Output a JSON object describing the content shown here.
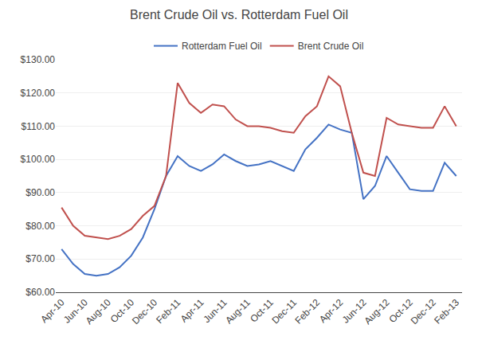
{
  "chart_data": {
    "type": "line",
    "title": "Brent Crude Oil vs. Rotterdam Fuel Oil",
    "categories": [
      "Apr-10",
      null,
      "Jun-10",
      null,
      "Aug-10",
      null,
      "Oct-10",
      null,
      "Dec-10",
      null,
      "Feb-11",
      null,
      "Apr-11",
      null,
      "Jun-11",
      null,
      "Aug-11",
      null,
      "Oct-11",
      null,
      "Dec-11",
      null,
      "Feb-12",
      null,
      "Apr-12",
      null,
      "Jun-12",
      null,
      "Aug-12",
      null,
      "Oct-12",
      null,
      "Dec-12",
      null,
      "Feb-13"
    ],
    "series": [
      {
        "name": "Rotterdam Fuel Oil",
        "color": "#4472C4",
        "values": [
          73.0,
          68.5,
          65.5,
          65.0,
          65.5,
          67.5,
          71.0,
          76.5,
          85.0,
          95.0,
          101.0,
          98.0,
          96.5,
          98.5,
          101.5,
          99.5,
          98.0,
          98.5,
          99.5,
          98.0,
          96.5,
          103.0,
          106.5,
          110.5,
          109.0,
          108.0,
          88.0,
          92.0,
          101.0,
          96.0,
          91.0,
          90.5,
          90.5,
          99.0,
          95.0
        ]
      },
      {
        "name": "Brent Crude Oil",
        "color": "#C0504D",
        "values": [
          85.5,
          80.0,
          77.0,
          76.5,
          76.0,
          77.0,
          79.0,
          83.0,
          86.0,
          95.0,
          123.0,
          117.0,
          114.0,
          116.5,
          116.0,
          112.0,
          110.0,
          110.0,
          109.5,
          108.5,
          108.0,
          113.0,
          116.0,
          125.0,
          122.0,
          108.0,
          96.0,
          95.0,
          112.5,
          110.5,
          110.0,
          109.5,
          109.5,
          116.0,
          110.0
        ]
      }
    ],
    "ylim": [
      60,
      130
    ],
    "yticks": [
      {
        "value": 60,
        "label": "$60.00"
      },
      {
        "value": 70,
        "label": "$70.00"
      },
      {
        "value": 80,
        "label": "$80.00"
      },
      {
        "value": 90,
        "label": "$90.00"
      },
      {
        "value": 100,
        "label": "$100.00"
      },
      {
        "value": 110,
        "label": "$110.00"
      },
      {
        "value": 120,
        "label": "$120.00"
      },
      {
        "value": 130,
        "label": "$130.00"
      }
    ],
    "grid": true,
    "legend": "top"
  }
}
